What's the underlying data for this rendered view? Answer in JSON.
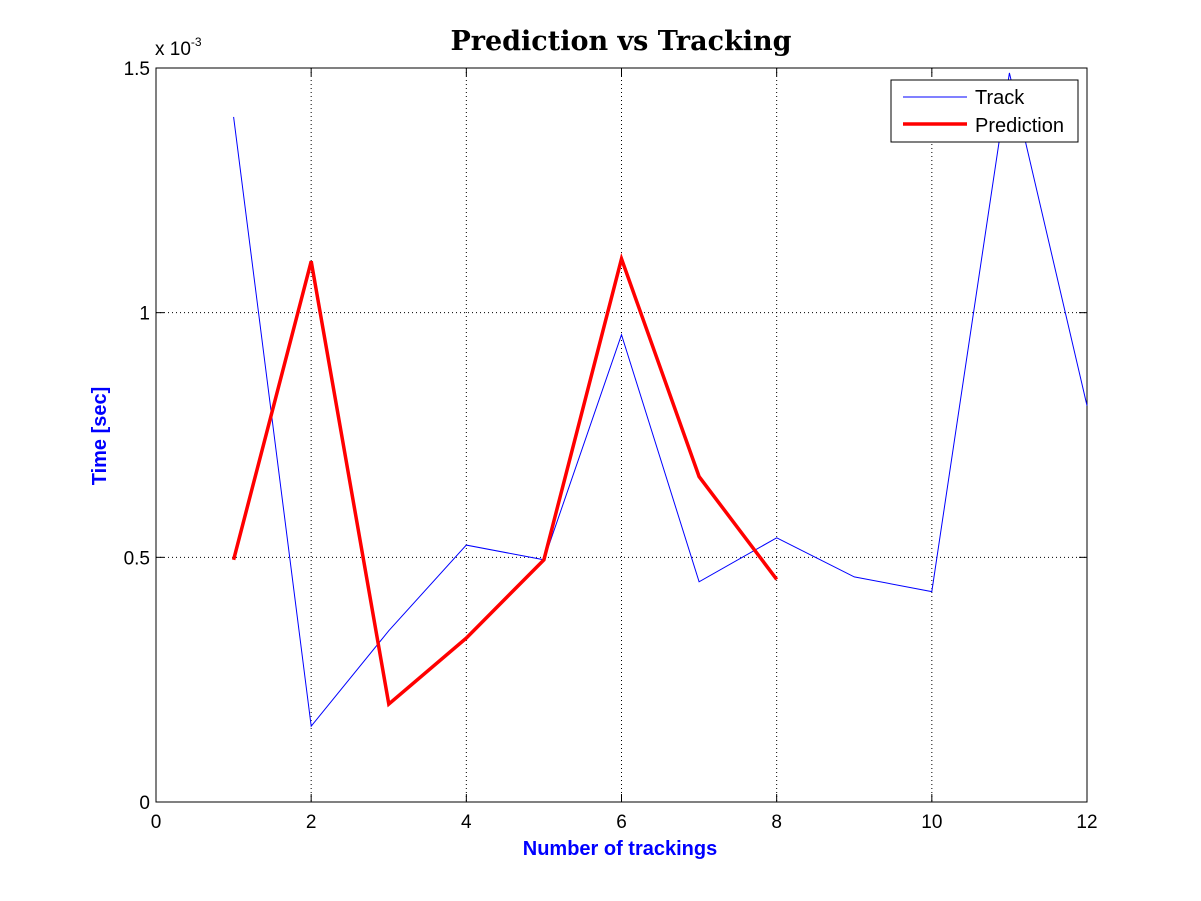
{
  "chart_data": {
    "type": "line",
    "title": "Prediction vs Tracking",
    "xlabel": "Number of trackings",
    "ylabel": "Time [sec]",
    "xlim": [
      0,
      12
    ],
    "ylim": [
      0,
      1.5
    ],
    "xticks": [
      "0",
      "2",
      "4",
      "6",
      "8",
      "10",
      "12"
    ],
    "yticks": [
      "0",
      "0.5",
      "1",
      "1.5"
    ],
    "ytick_values": [
      0,
      0.5,
      1,
      1.5
    ],
    "xtick_values": [
      0,
      2,
      4,
      6,
      8,
      10,
      12
    ],
    "y_exponent_prefix": "x 10",
    "y_exponent": "-3",
    "grid": true,
    "legend_position": "top-right",
    "label_color": "#0000ff",
    "series": [
      {
        "name": "Track",
        "color": "#0000ff",
        "x": [
          1,
          2,
          3,
          4,
          5,
          6,
          7,
          8,
          9,
          10,
          11,
          12
        ],
        "values": [
          1.4,
          0.155,
          0.35,
          0.525,
          0.495,
          0.955,
          0.45,
          0.54,
          0.46,
          0.43,
          1.49,
          0.81
        ]
      },
      {
        "name": "Prediction",
        "color": "#ff0000",
        "x": [
          1,
          2,
          3,
          4,
          5,
          6,
          7,
          8
        ],
        "values": [
          0.495,
          1.105,
          0.2,
          0.335,
          0.495,
          1.11,
          0.665,
          0.455
        ]
      }
    ]
  }
}
